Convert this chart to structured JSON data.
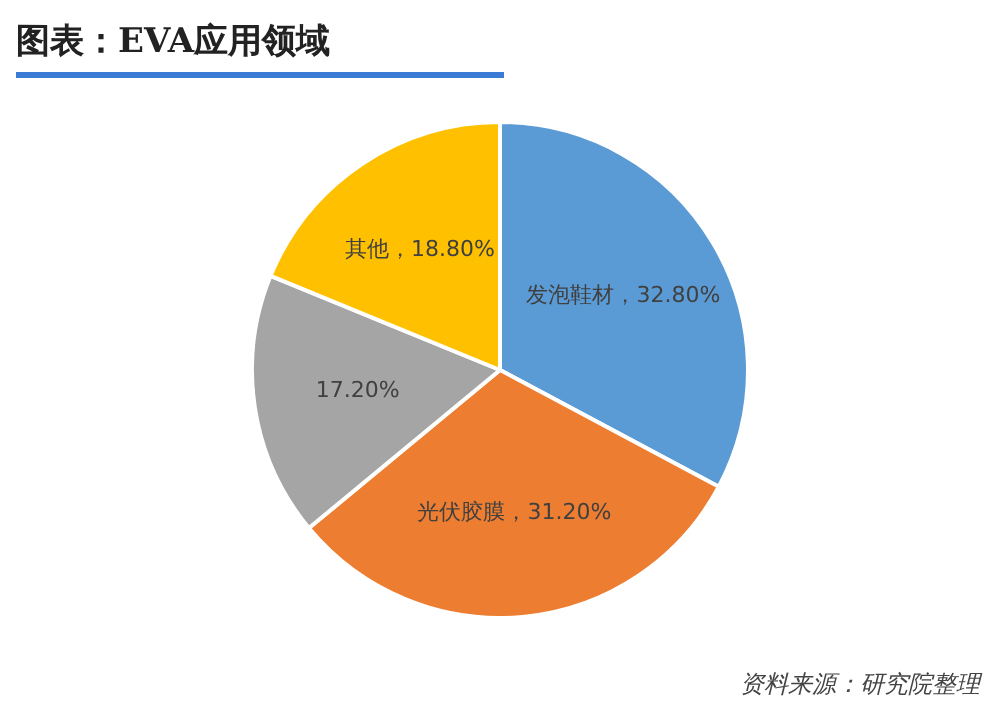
{
  "chart_data": {
    "type": "pie",
    "title": "图表：EVA应用领域",
    "categories": [
      "发泡鞋材",
      "光伏胶膜",
      null,
      "其他"
    ],
    "values": [
      32.8,
      31.2,
      17.2,
      18.8
    ],
    "value_labels": [
      "32.80%",
      "31.20%",
      "17.20%",
      "18.80%"
    ],
    "colors": [
      "#5b9bd5",
      "#ed7d31",
      "#a5a5a5",
      "#ffc000"
    ],
    "legend": false,
    "annotations": [
      "资料来源：研究院整理"
    ]
  }
}
